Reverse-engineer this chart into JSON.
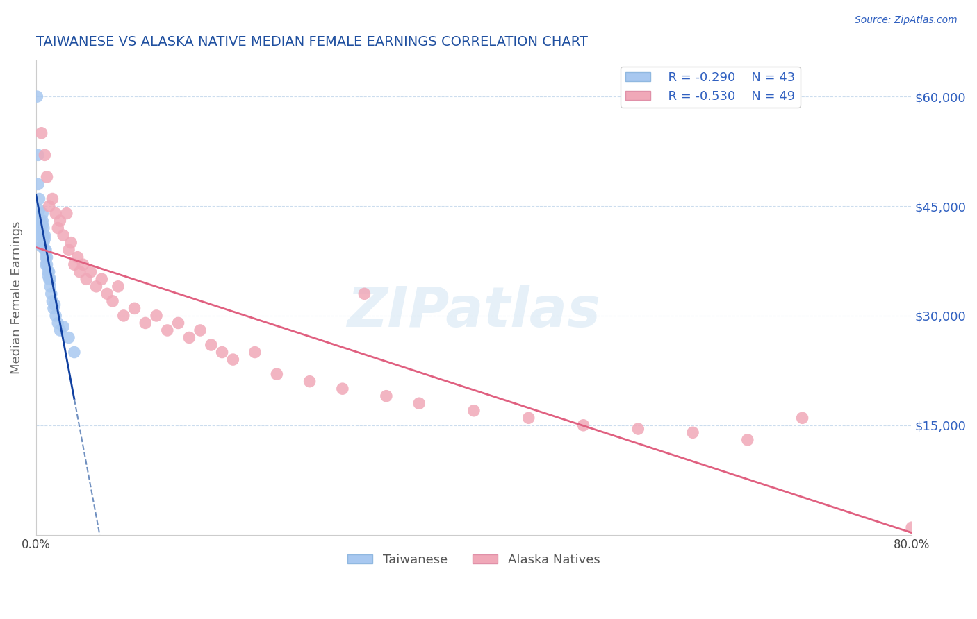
{
  "title": "TAIWANESE VS ALASKA NATIVE MEDIAN FEMALE EARNINGS CORRELATION CHART",
  "source": "Source: ZipAtlas.com",
  "ylabel": "Median Female Earnings",
  "xmin": 0.0,
  "xmax": 0.8,
  "ymin": 0,
  "ymax": 65000,
  "yticks": [
    0,
    15000,
    30000,
    45000,
    60000
  ],
  "ytick_labels": [
    "",
    "$15,000",
    "$30,000",
    "$45,000",
    "$60,000"
  ],
  "xticks": [
    0.0,
    0.1,
    0.2,
    0.3,
    0.4,
    0.5,
    0.6,
    0.7,
    0.8
  ],
  "legend_r1": "R = -0.290",
  "legend_n1": "N = 43",
  "legend_r2": "R = -0.530",
  "legend_n2": "N = 49",
  "color_taiwanese": "#a8c8f0",
  "color_alaska": "#f0a8b8",
  "color_trend_taiwanese_solid": "#1040a0",
  "color_trend_taiwanese_dashed": "#7090c0",
  "color_trend_alaska": "#e06080",
  "color_title": "#2050a0",
  "color_axis_label": "#666666",
  "color_ytick_label": "#3060c0",
  "color_source": "#3060c0",
  "watermark": "ZIPatlas",
  "taiwanese_x": [
    0.001,
    0.002,
    0.002,
    0.003,
    0.003,
    0.003,
    0.004,
    0.004,
    0.004,
    0.005,
    0.005,
    0.005,
    0.005,
    0.006,
    0.006,
    0.006,
    0.007,
    0.007,
    0.007,
    0.008,
    0.008,
    0.008,
    0.009,
    0.009,
    0.009,
    0.01,
    0.01,
    0.011,
    0.011,
    0.012,
    0.012,
    0.013,
    0.013,
    0.014,
    0.015,
    0.016,
    0.017,
    0.018,
    0.02,
    0.022,
    0.025,
    0.03,
    0.035
  ],
  "taiwanese_y": [
    60000,
    52000,
    48000,
    46000,
    44500,
    43000,
    43000,
    42000,
    41000,
    42000,
    41000,
    40000,
    39500,
    44000,
    43000,
    42500,
    42000,
    41000,
    40000,
    41000,
    40500,
    39000,
    39000,
    38000,
    37000,
    38000,
    37000,
    36000,
    35500,
    36000,
    35000,
    35000,
    34000,
    33000,
    32000,
    31000,
    31500,
    30000,
    29000,
    28000,
    28500,
    27000,
    25000
  ],
  "alaska_x": [
    0.005,
    0.008,
    0.01,
    0.012,
    0.015,
    0.018,
    0.02,
    0.022,
    0.025,
    0.028,
    0.03,
    0.032,
    0.035,
    0.038,
    0.04,
    0.043,
    0.046,
    0.05,
    0.055,
    0.06,
    0.065,
    0.07,
    0.075,
    0.08,
    0.09,
    0.1,
    0.11,
    0.12,
    0.13,
    0.14,
    0.15,
    0.16,
    0.17,
    0.18,
    0.2,
    0.22,
    0.25,
    0.28,
    0.3,
    0.32,
    0.35,
    0.4,
    0.45,
    0.5,
    0.55,
    0.6,
    0.65,
    0.7,
    0.8
  ],
  "alaska_y": [
    55000,
    52000,
    49000,
    45000,
    46000,
    44000,
    42000,
    43000,
    41000,
    44000,
    39000,
    40000,
    37000,
    38000,
    36000,
    37000,
    35000,
    36000,
    34000,
    35000,
    33000,
    32000,
    34000,
    30000,
    31000,
    29000,
    30000,
    28000,
    29000,
    27000,
    28000,
    26000,
    25000,
    24000,
    25000,
    22000,
    21000,
    20000,
    33000,
    19000,
    18000,
    17000,
    16000,
    15000,
    14500,
    14000,
    13000,
    16000,
    1000
  ]
}
